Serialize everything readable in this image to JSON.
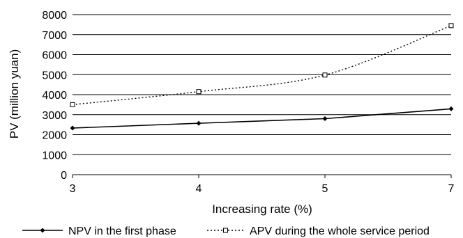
{
  "chart_data": {
    "type": "line",
    "x": [
      "3",
      "4",
      "5",
      "7"
    ],
    "xlabel": "Increasing rate (%)",
    "ylabel": "PV (million yuan)",
    "ylim": [
      0,
      8000
    ],
    "yticks": [
      0,
      1000,
      2000,
      3000,
      4000,
      5000,
      6000,
      7000,
      8000
    ],
    "grid": "horizontal",
    "legend_position": "bottom",
    "series": [
      {
        "name": "NPV in the first phase",
        "values": [
          2330,
          2570,
          2800,
          3290
        ],
        "line": "solid",
        "marker": "filled-diamond",
        "color": "#000000"
      },
      {
        "name": "APV during the whole service period",
        "values": [
          3500,
          4150,
          4980,
          7450
        ],
        "line": "dotted",
        "marker": "open-square",
        "color": "#000000"
      }
    ]
  }
}
